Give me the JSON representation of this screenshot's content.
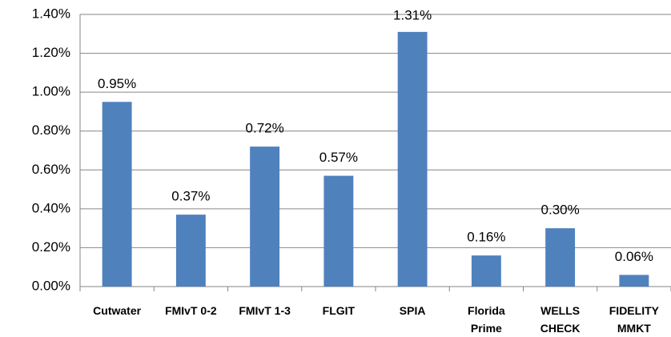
{
  "chart_data": {
    "type": "bar",
    "categories": [
      "Cutwater",
      "FMIvT 0-2",
      "FMIvT 1-3",
      "FLGIT",
      "SPIA",
      "Florida\nPrime",
      "WELLS\nCHECK",
      "FIDELITY\nMMKT"
    ],
    "values": [
      0.95,
      0.37,
      0.72,
      0.57,
      1.31,
      0.16,
      0.3,
      0.06
    ],
    "value_labels": [
      "0.95%",
      "0.37%",
      "0.72%",
      "0.57%",
      "1.31%",
      "0.16%",
      "0.30%",
      "0.06%"
    ],
    "color": "#4f81bd",
    "ylim": [
      0,
      1.4
    ],
    "yticks": [
      {
        "value": 0,
        "label": "0.00%"
      },
      {
        "value": 0.2,
        "label": "0.20%"
      },
      {
        "value": 0.4,
        "label": "0.40%"
      },
      {
        "value": 0.6,
        "label": "0.60%"
      },
      {
        "value": 0.8,
        "label": "0.80%"
      },
      {
        "value": 1.0,
        "label": "1.00%"
      },
      {
        "value": 1.2,
        "label": "1.20%"
      },
      {
        "value": 1.4,
        "label": "1.40%"
      }
    ],
    "grid": true
  }
}
